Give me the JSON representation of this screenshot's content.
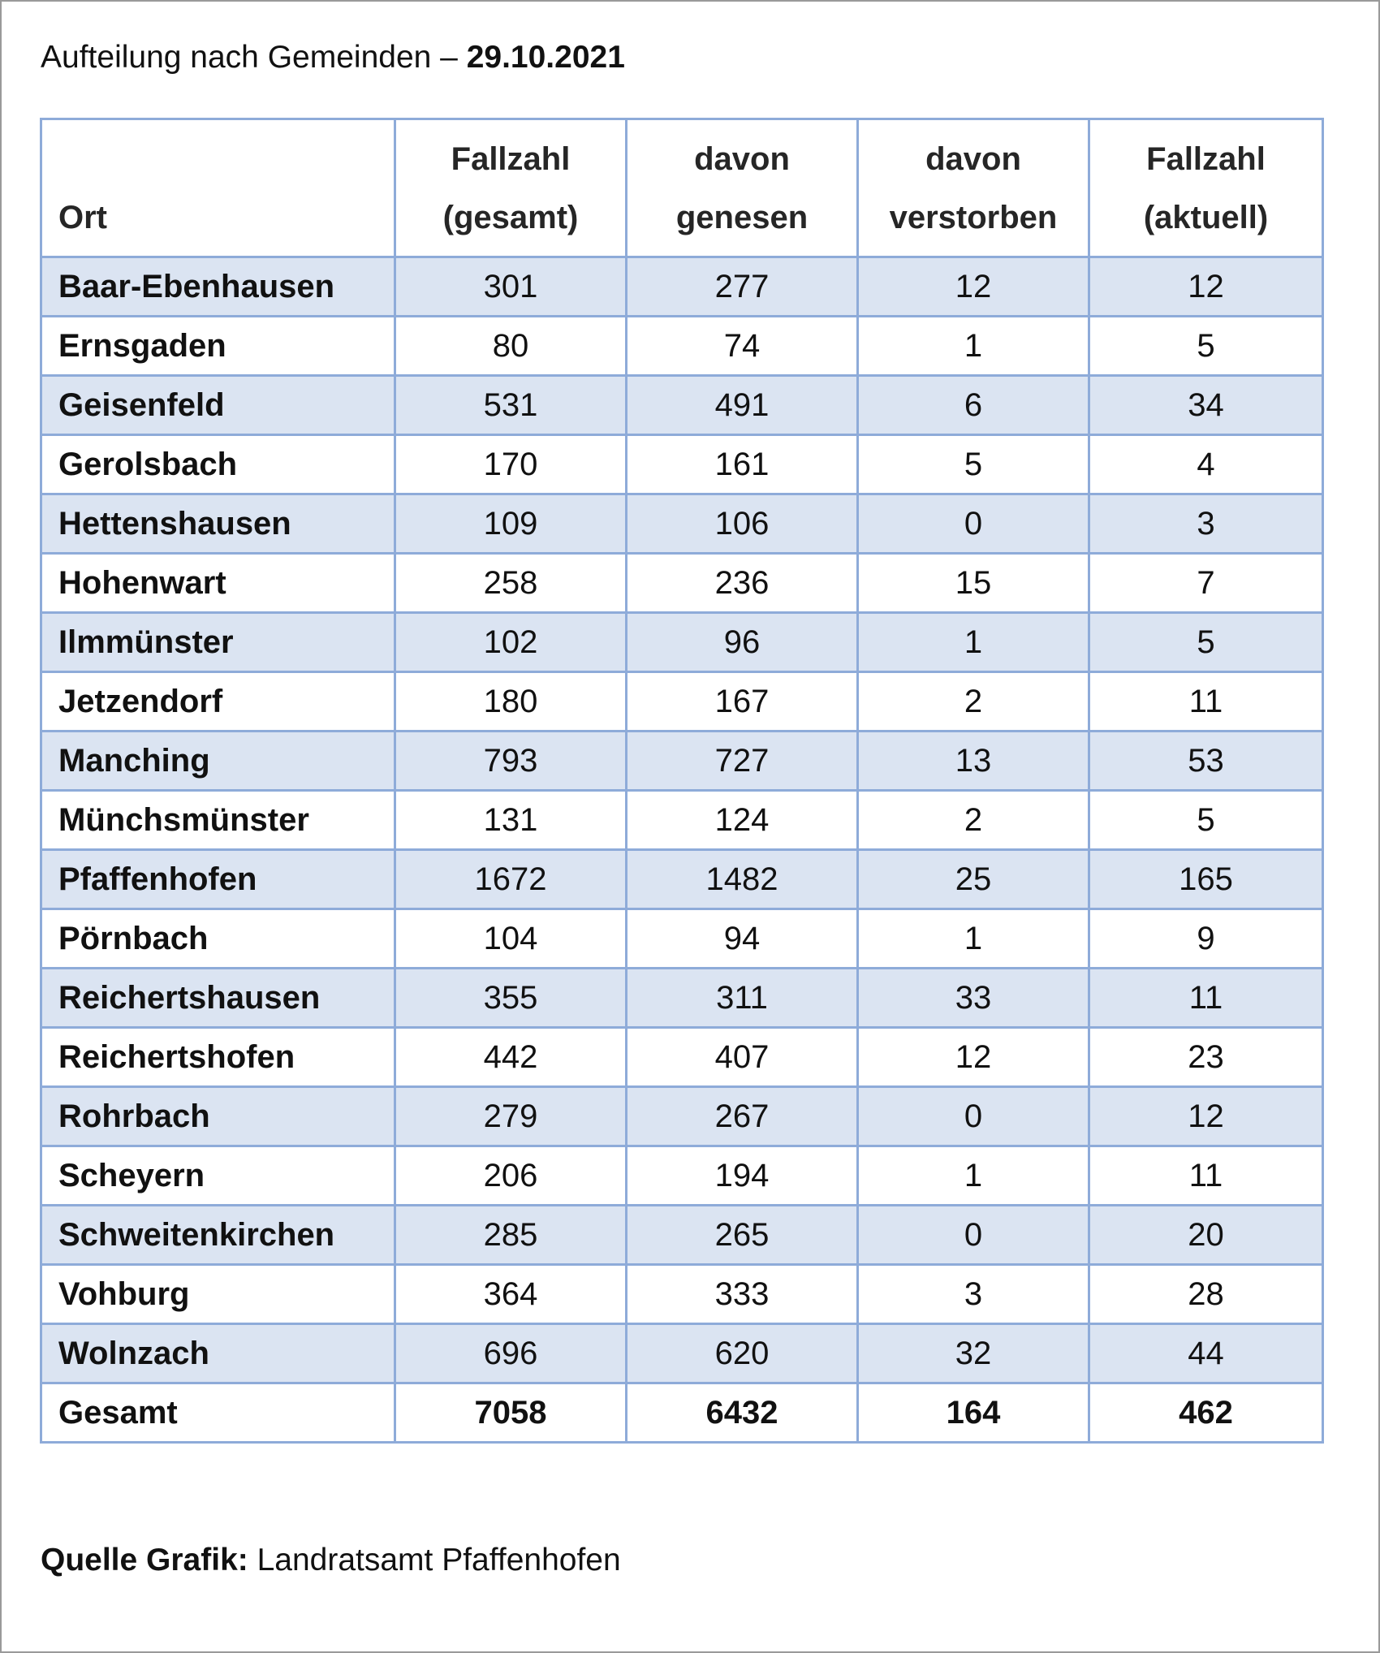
{
  "title": {
    "prefix": "Aufteilung nach Gemeinden – ",
    "date": "29.10.2021"
  },
  "table": {
    "headers": [
      {
        "line1": "",
        "line2": "Ort"
      },
      {
        "line1": "Fallzahl",
        "line2": "(gesamt)"
      },
      {
        "line1": "davon",
        "line2": "genesen"
      },
      {
        "line1": "davon",
        "line2": "verstorben"
      },
      {
        "line1": "Fallzahl",
        "line2": "(aktuell)"
      }
    ],
    "rows": [
      [
        "Baar-Ebenhausen",
        "301",
        "277",
        "12",
        "12"
      ],
      [
        "Ernsgaden",
        "80",
        "74",
        "1",
        "5"
      ],
      [
        "Geisenfeld",
        "531",
        "491",
        "6",
        "34"
      ],
      [
        "Gerolsbach",
        "170",
        "161",
        "5",
        "4"
      ],
      [
        "Hettenshausen",
        "109",
        "106",
        "0",
        "3"
      ],
      [
        "Hohenwart",
        "258",
        "236",
        "15",
        "7"
      ],
      [
        "Ilmmünster",
        "102",
        "96",
        "1",
        "5"
      ],
      [
        "Jetzendorf",
        "180",
        "167",
        "2",
        "11"
      ],
      [
        "Manching",
        "793",
        "727",
        "13",
        "53"
      ],
      [
        "Münchsmünster",
        "131",
        "124",
        "2",
        "5"
      ],
      [
        "Pfaffenhofen",
        "1672",
        "1482",
        "25",
        "165"
      ],
      [
        "Pörnbach",
        "104",
        "94",
        "1",
        "9"
      ],
      [
        "Reichertshausen",
        "355",
        "311",
        "33",
        "11"
      ],
      [
        "Reichertshofen",
        "442",
        "407",
        "12",
        "23"
      ],
      [
        "Rohrbach",
        "279",
        "267",
        "0",
        "12"
      ],
      [
        "Scheyern",
        "206",
        "194",
        "1",
        "11"
      ],
      [
        "Schweitenkirchen",
        "285",
        "265",
        "0",
        "20"
      ],
      [
        "Vohburg",
        "364",
        "333",
        "3",
        "28"
      ],
      [
        "Wolnzach",
        "696",
        "620",
        "32",
        "44"
      ]
    ],
    "total": [
      "Gesamt",
      "7058",
      "6432",
      "164",
      "462"
    ]
  },
  "source": {
    "label": "Quelle Grafik:",
    "text": " Landratsamt Pfaffenhofen"
  },
  "colors": {
    "border": "#8eabd9",
    "band": "#dbe4f2"
  }
}
